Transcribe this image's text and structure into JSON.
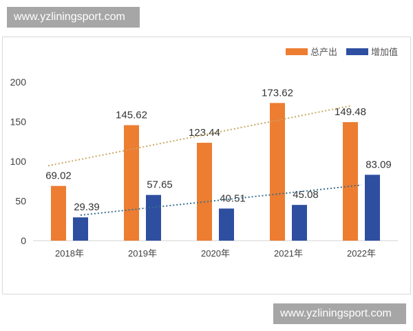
{
  "watermarks": [
    "www.yzliningsport.com",
    "www.yzliningsport.com"
  ],
  "chart_data": {
    "type": "bar",
    "categories": [
      "2018年",
      "2019年",
      "2020年",
      "2021年",
      "2022年"
    ],
    "series": [
      {
        "name": "总产出",
        "color": "#ed7d31",
        "values": [
          69.02,
          145.62,
          123.44,
          173.62,
          149.48
        ],
        "trendline": "linear",
        "trendline_color": "#c9a660"
      },
      {
        "name": "增加值",
        "color": "#2e4fa0",
        "values": [
          29.39,
          57.65,
          40.51,
          45.08,
          83.09
        ],
        "trendline": "linear",
        "trendline_color": "#3a6f8f"
      }
    ],
    "yticks": [
      "0",
      "50",
      "100",
      "150",
      "200"
    ],
    "ylim": [
      0,
      200
    ],
    "grid": false,
    "legend": "top-right",
    "data_labels": true
  }
}
